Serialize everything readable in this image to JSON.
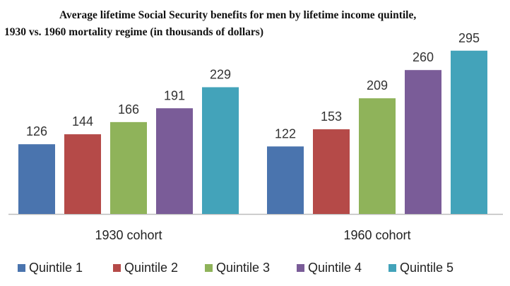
{
  "chart_data": {
    "type": "bar",
    "title_line1": "Average lifetime Social Security benefits for men by lifetime income quintile,",
    "title_line2": "1930 vs. 1960 mortality regime (in thousands of dollars)",
    "xlabel": "",
    "ylabel": "",
    "ylim": [
      0,
      310
    ],
    "grid": false,
    "legend_position": "bottom",
    "categories": [
      "1930 cohort",
      "1960 cohort"
    ],
    "series": [
      {
        "name": "Quintile 1",
        "color": "#4a74ae",
        "values": [
          126,
          122
        ]
      },
      {
        "name": "Quintile 2",
        "color": "#b54a48",
        "values": [
          144,
          153
        ]
      },
      {
        "name": "Quintile 3",
        "color": "#8fb35a",
        "values": [
          166,
          209
        ]
      },
      {
        "name": "Quintile 4",
        "color": "#7a5c98",
        "values": [
          191,
          260
        ]
      },
      {
        "name": "Quintile 5",
        "color": "#43a3ba",
        "values": [
          229,
          295
        ]
      }
    ]
  }
}
